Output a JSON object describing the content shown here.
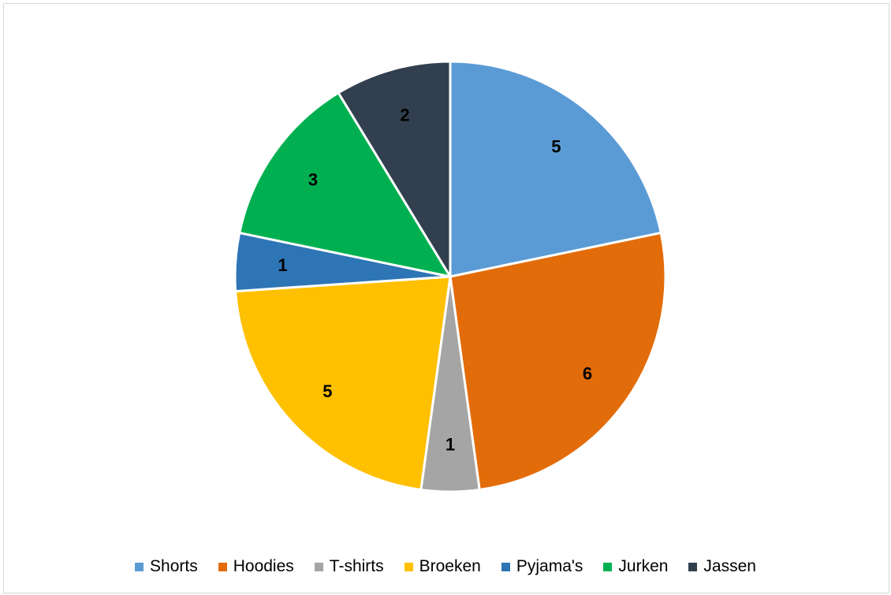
{
  "chart_data": {
    "type": "pie",
    "title": "",
    "categories": [
      "Shorts",
      "Hoodies",
      "T-shirts",
      "Broeken",
      "Pyjama's",
      "Jurken",
      "Jassen"
    ],
    "values": [
      5,
      6,
      1,
      5,
      1,
      3,
      2
    ],
    "colors": [
      "#5b9bd5",
      "#e36c0a",
      "#a5a5a5",
      "#ffc000",
      "#2e75b6",
      "#00b050",
      "#323f4f"
    ],
    "data_labels": [
      "5",
      "6",
      "1",
      "5",
      "1",
      "3",
      "2"
    ],
    "legend_position": "bottom",
    "start_angle": "12 o'clock",
    "direction": "clockwise"
  }
}
